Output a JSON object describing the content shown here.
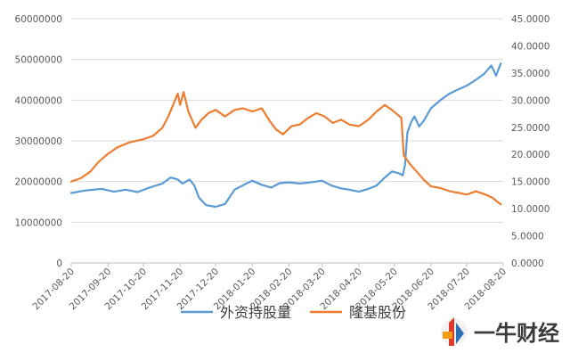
{
  "chart_data": {
    "type": "line",
    "title": "",
    "xlabel": "",
    "ylabel_left": "",
    "ylabel_right": "",
    "x_ticks": [
      "2017-08-20",
      "2017-09-20",
      "2017-10-20",
      "2017-11-20",
      "2017-12-20",
      "2018-01-20",
      "2018-02-20",
      "2018-03-20",
      "2018-04-20",
      "2018-05-20",
      "2018-06-20",
      "2018-07-20",
      "2018-08-20"
    ],
    "y_left_ticks": [
      "0",
      "10000000",
      "20000000",
      "30000000",
      "40000000",
      "50000000",
      "60000000"
    ],
    "y_right_ticks": [
      "0.0000",
      "5.0000",
      "10.0000",
      "15.0000",
      "20.0000",
      "25.0000",
      "30.0000",
      "35.0000",
      "40.0000",
      "45.0000"
    ],
    "ylim_left": [
      0,
      60000000
    ],
    "ylim_right": [
      0,
      45
    ],
    "x_range": [
      "2017-08-20",
      "2018-08-20"
    ],
    "grid": "horizontal",
    "legend": "bottom",
    "series": [
      {
        "name": "外资持股量",
        "axis": "left",
        "color": "#5b9bd5",
        "points": [
          [
            "2017-08-20",
            17200000
          ],
          [
            "2017-09-01",
            17800000
          ],
          [
            "2017-09-15",
            18200000
          ],
          [
            "2017-09-25",
            17500000
          ],
          [
            "2017-10-05",
            18000000
          ],
          [
            "2017-10-15",
            17400000
          ],
          [
            "2017-10-25",
            18500000
          ],
          [
            "2017-11-05",
            19500000
          ],
          [
            "2017-11-12",
            21000000
          ],
          [
            "2017-11-18",
            20500000
          ],
          [
            "2017-11-22",
            19500000
          ],
          [
            "2017-11-28",
            20500000
          ],
          [
            "2017-12-02",
            19000000
          ],
          [
            "2017-12-06",
            16000000
          ],
          [
            "2017-12-12",
            14200000
          ],
          [
            "2017-12-20",
            13800000
          ],
          [
            "2017-12-28",
            14500000
          ],
          [
            "2018-01-05",
            18000000
          ],
          [
            "2018-01-15",
            19500000
          ],
          [
            "2018-01-20",
            20200000
          ],
          [
            "2018-01-28",
            19200000
          ],
          [
            "2018-02-05",
            18500000
          ],
          [
            "2018-02-12",
            19600000
          ],
          [
            "2018-02-20",
            19800000
          ],
          [
            "2018-03-01",
            19500000
          ],
          [
            "2018-03-10",
            19800000
          ],
          [
            "2018-03-20",
            20200000
          ],
          [
            "2018-03-28",
            19000000
          ],
          [
            "2018-04-05",
            18300000
          ],
          [
            "2018-04-12",
            18000000
          ],
          [
            "2018-04-20",
            17500000
          ],
          [
            "2018-04-28",
            18200000
          ],
          [
            "2018-05-05",
            19000000
          ],
          [
            "2018-05-12",
            21000000
          ],
          [
            "2018-05-18",
            22500000
          ],
          [
            "2018-05-24",
            22000000
          ],
          [
            "2018-05-27",
            21500000
          ],
          [
            "2018-05-29",
            24000000
          ],
          [
            "2018-05-31",
            32000000
          ],
          [
            "2018-06-03",
            34500000
          ],
          [
            "2018-06-06",
            36000000
          ],
          [
            "2018-06-10",
            33500000
          ],
          [
            "2018-06-14",
            35000000
          ],
          [
            "2018-06-20",
            38000000
          ],
          [
            "2018-06-28",
            40000000
          ],
          [
            "2018-07-05",
            41500000
          ],
          [
            "2018-07-12",
            42500000
          ],
          [
            "2018-07-20",
            43500000
          ],
          [
            "2018-07-28",
            45000000
          ],
          [
            "2018-08-04",
            46500000
          ],
          [
            "2018-08-10",
            48500000
          ],
          [
            "2018-08-14",
            46000000
          ],
          [
            "2018-08-18",
            49000000
          ]
        ]
      },
      {
        "name": "隆基股份",
        "axis": "right",
        "color": "#ed7d31",
        "points": [
          [
            "2017-08-20",
            20000000
          ],
          [
            "2017-08-28",
            20800000
          ],
          [
            "2017-09-05",
            22400000
          ],
          [
            "2017-09-12",
            24800000
          ],
          [
            "2017-09-20",
            26800000
          ],
          [
            "2017-09-28",
            28400000
          ],
          [
            "2017-10-08",
            29600000
          ],
          [
            "2017-10-20",
            30400000
          ],
          [
            "2017-10-28",
            31200000
          ],
          [
            "2017-11-05",
            33200000
          ],
          [
            "2017-11-10",
            36000000
          ],
          [
            "2017-11-14",
            38800000
          ],
          [
            "2017-11-18",
            41600000
          ],
          [
            "2017-11-20",
            38800000
          ],
          [
            "2017-11-23",
            42000000
          ],
          [
            "2017-11-27",
            37200000
          ],
          [
            "2017-12-03",
            33200000
          ],
          [
            "2017-12-08",
            35200000
          ],
          [
            "2017-12-14",
            36800000
          ],
          [
            "2017-12-20",
            37600000
          ],
          [
            "2017-12-28",
            36000000
          ],
          [
            "2018-01-05",
            37600000
          ],
          [
            "2018-01-12",
            38000000
          ],
          [
            "2018-01-20",
            37200000
          ],
          [
            "2018-01-28",
            38000000
          ],
          [
            "2018-02-03",
            35200000
          ],
          [
            "2018-02-09",
            32800000
          ],
          [
            "2018-02-15",
            31600000
          ],
          [
            "2018-02-22",
            33600000
          ],
          [
            "2018-03-01",
            34000000
          ],
          [
            "2018-03-08",
            35600000
          ],
          [
            "2018-03-15",
            36800000
          ],
          [
            "2018-03-22",
            36000000
          ],
          [
            "2018-03-29",
            34400000
          ],
          [
            "2018-04-05",
            35200000
          ],
          [
            "2018-04-12",
            34000000
          ],
          [
            "2018-04-20",
            33600000
          ],
          [
            "2018-04-28",
            35200000
          ],
          [
            "2018-05-05",
            37200000
          ],
          [
            "2018-05-12",
            38800000
          ],
          [
            "2018-05-18",
            37600000
          ],
          [
            "2018-05-23",
            36400000
          ],
          [
            "2018-05-26",
            35600000
          ],
          [
            "2018-05-28",
            26400000
          ],
          [
            "2018-06-02",
            24400000
          ],
          [
            "2018-06-08",
            22400000
          ],
          [
            "2018-06-14",
            20400000
          ],
          [
            "2018-06-20",
            18800000
          ],
          [
            "2018-06-28",
            18400000
          ],
          [
            "2018-07-06",
            17600000
          ],
          [
            "2018-07-14",
            17200000
          ],
          [
            "2018-07-20",
            16800000
          ],
          [
            "2018-07-28",
            17600000
          ],
          [
            "2018-08-05",
            16800000
          ],
          [
            "2018-08-11",
            16000000
          ],
          [
            "2018-08-16",
            14800000
          ],
          [
            "2018-08-18",
            14400000
          ]
        ]
      }
    ]
  },
  "watermark": {
    "text": "一牛财经",
    "color_red": "#e03a2f",
    "color_blue": "#2f6fb5",
    "color_orange": "#f39c12"
  }
}
